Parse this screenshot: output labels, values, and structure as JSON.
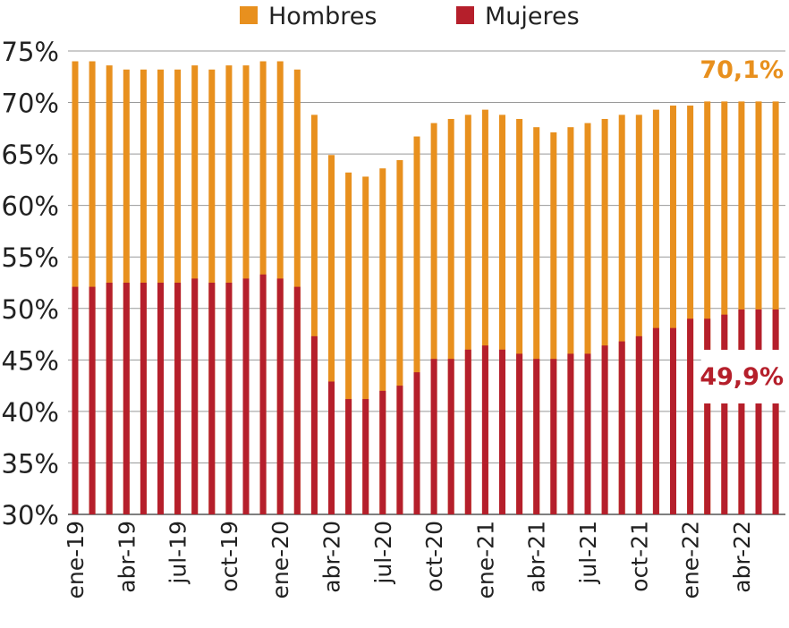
{
  "chart_data": {
    "type": "bar",
    "ylim": [
      30,
      75
    ],
    "yticks": [
      "30%",
      "35%",
      "40%",
      "45%",
      "50%",
      "55%",
      "60%",
      "65%",
      "70%",
      "75%"
    ],
    "grid": true,
    "legend_position": "top",
    "categories": [
      "ene-19",
      "feb-19",
      "mar-19",
      "abr-19",
      "may-19",
      "jun-19",
      "jul-19",
      "ago-19",
      "sep-19",
      "oct-19",
      "nov-19",
      "dic-19",
      "ene-20",
      "feb-20",
      "mar-20",
      "abr-20",
      "may-20",
      "jun-20",
      "jul-20",
      "ago-20",
      "sep-20",
      "oct-20",
      "nov-20",
      "dic-20",
      "ene-21",
      "feb-21",
      "mar-21",
      "abr-21",
      "may-21",
      "jun-21",
      "jul-21",
      "ago-21",
      "sep-21",
      "oct-21",
      "nov-21",
      "dic-21",
      "ene-22",
      "feb-22",
      "mar-22",
      "abr-22",
      "may-22",
      "jun-22"
    ],
    "x_tick_labels": [
      "ene-19",
      "abr-19",
      "jul-19",
      "oct-19",
      "ene-20",
      "abr-20",
      "jul-20",
      "oct-20",
      "ene-21",
      "abr-21",
      "jul-21",
      "oct-21",
      "ene-22",
      "abr-22"
    ],
    "series": [
      {
        "name": "Hombres",
        "color": "#E8901E",
        "values": [
          74.0,
          74.0,
          73.6,
          73.2,
          73.2,
          73.2,
          73.2,
          73.6,
          73.2,
          73.6,
          73.6,
          74.0,
          74.0,
          73.2,
          68.8,
          64.9,
          63.2,
          62.8,
          63.6,
          64.4,
          66.7,
          68.0,
          68.4,
          68.8,
          69.3,
          68.8,
          68.4,
          67.6,
          67.1,
          67.6,
          68.0,
          68.4,
          68.8,
          68.8,
          69.3,
          69.7,
          69.7,
          70.1,
          70.1,
          70.1,
          70.1,
          70.1
        ]
      },
      {
        "name": "Mujeres",
        "color": "#B51F2B",
        "values": [
          52.1,
          52.1,
          52.5,
          52.5,
          52.5,
          52.5,
          52.5,
          52.9,
          52.5,
          52.5,
          52.9,
          53.3,
          52.9,
          52.1,
          47.3,
          42.9,
          41.2,
          41.2,
          42.0,
          42.5,
          43.8,
          45.1,
          45.1,
          46.0,
          46.4,
          46.0,
          45.6,
          45.1,
          45.1,
          45.6,
          45.6,
          46.4,
          46.8,
          47.3,
          48.1,
          48.1,
          49.0,
          49.0,
          49.4,
          49.9,
          49.9,
          49.9
        ]
      }
    ],
    "annotations": [
      {
        "text": "70,1%",
        "series": "Hombres",
        "color": "#E8901E"
      },
      {
        "text": "49,9%",
        "series": "Mujeres",
        "color": "#B51F2B"
      }
    ]
  }
}
